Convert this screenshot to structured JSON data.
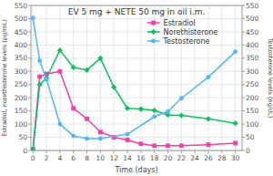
{
  "chart_data": {
    "type": "line",
    "title": "EV 5 mg + NETE 50 mg in oil i.m.",
    "xlabel": "Time (days)",
    "ylabel": "Estradiol, norethisterone levels (pg/mL)",
    "y2label": "Testosterone levels (ng/dL)",
    "xlim": [
      -0.3,
      31
    ],
    "xticks": [
      0,
      2,
      4,
      6,
      8,
      10,
      12,
      14,
      16,
      18,
      20,
      22,
      24,
      26,
      28,
      30
    ],
    "ylim": [
      0,
      550
    ],
    "yticks": [
      0,
      50,
      100,
      150,
      200,
      250,
      300,
      350,
      400,
      450,
      500,
      550
    ],
    "y2lim": [
      0,
      550
    ],
    "y2ticks": [
      0,
      50,
      100,
      150,
      200,
      250,
      300,
      350,
      400,
      450,
      500,
      550
    ],
    "grid": true,
    "legend": "upper right",
    "series": [
      {
        "name": "Estradiol",
        "color": "#f040a8",
        "marker": "square",
        "x": [
          0,
          1,
          2,
          4,
          6,
          8,
          10,
          12,
          14,
          16,
          18,
          20,
          22,
          26,
          30
        ],
        "values": [
          5,
          280,
          290,
          300,
          160,
          120,
          70,
          50,
          40,
          25,
          18,
          18,
          18,
          22,
          28
        ]
      },
      {
        "name": "Norethisterone",
        "color": "#10c060",
        "marker": "diamond",
        "x": [
          0,
          1,
          2,
          4,
          6,
          8,
          10,
          12,
          14,
          16,
          18,
          20,
          22,
          26,
          30
        ],
        "values": [
          0,
          250,
          275,
          380,
          315,
          305,
          350,
          240,
          160,
          157,
          152,
          135,
          133,
          120,
          103
        ]
      },
      {
        "name": "Testosterone",
        "color": "#50b8f8",
        "marker": "circle",
        "axis": "y2",
        "x": [
          0,
          1,
          2,
          4,
          6,
          8,
          10,
          14,
          18,
          20,
          22,
          26,
          30
        ],
        "values": [
          503,
          340,
          270,
          100,
          55,
          45,
          45,
          62,
          128,
          148,
          198,
          278,
          375
        ]
      }
    ]
  }
}
